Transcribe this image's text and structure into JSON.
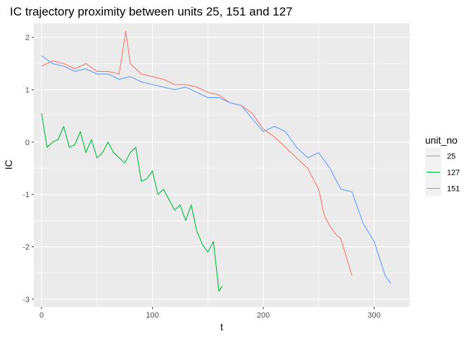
{
  "chart_data": {
    "type": "line",
    "title": "IC trajectory proximity between units 25, 151 and 127",
    "xlabel": "t",
    "ylabel": "IC",
    "xlim": [
      -7,
      332
    ],
    "ylim": [
      -3.15,
      2.27
    ],
    "x_ticks": [
      0,
      100,
      200,
      300
    ],
    "y_ticks": [
      2,
      1,
      0,
      -1,
      -2,
      -3
    ],
    "x_tick_labels": [
      "0",
      "100",
      "200",
      "300"
    ],
    "y_tick_labels": [
      "2",
      "1",
      "0",
      "-1",
      "-2",
      "-3"
    ],
    "grid": true,
    "legend": {
      "title": "unit_no",
      "position": "right"
    },
    "series": [
      {
        "name": "25",
        "color": "#F8766D",
        "x": [
          0,
          10,
          20,
          30,
          40,
          50,
          60,
          70,
          76,
          80,
          90,
          100,
          110,
          120,
          130,
          140,
          150,
          160,
          170,
          180,
          190,
          200,
          210,
          220,
          230,
          240,
          250,
          255,
          260,
          265,
          270,
          275,
          280
        ],
        "y": [
          1.45,
          1.55,
          1.5,
          1.4,
          1.5,
          1.35,
          1.35,
          1.3,
          2.12,
          1.5,
          1.3,
          1.25,
          1.2,
          1.1,
          1.1,
          1.05,
          0.95,
          0.9,
          0.75,
          0.7,
          0.55,
          0.25,
          0.1,
          -0.1,
          -0.3,
          -0.5,
          -0.9,
          -1.4,
          -1.6,
          -1.75,
          -1.85,
          -2.2,
          -2.55
        ]
      },
      {
        "name": "127",
        "color": "#00BA38",
        "x": [
          0,
          5,
          10,
          15,
          20,
          25,
          30,
          35,
          40,
          45,
          50,
          55,
          60,
          65,
          70,
          75,
          80,
          85,
          90,
          95,
          100,
          105,
          110,
          115,
          120,
          125,
          130,
          135,
          140,
          145,
          150,
          155,
          160,
          163
        ],
        "y": [
          0.55,
          -0.1,
          0.0,
          0.05,
          0.3,
          -0.1,
          -0.05,
          0.2,
          -0.2,
          0.05,
          -0.3,
          -0.2,
          0.0,
          -0.2,
          -0.3,
          -0.4,
          -0.2,
          -0.1,
          -0.75,
          -0.7,
          -0.55,
          -1.0,
          -0.9,
          -1.1,
          -1.3,
          -1.2,
          -1.5,
          -1.2,
          -1.7,
          -1.95,
          -2.1,
          -1.9,
          -2.85,
          -2.75
        ]
      },
      {
        "name": "151",
        "color": "#619CFF",
        "x": [
          0,
          10,
          20,
          30,
          40,
          50,
          60,
          70,
          80,
          90,
          100,
          110,
          120,
          130,
          140,
          150,
          160,
          170,
          180,
          190,
          200,
          210,
          220,
          230,
          240,
          250,
          260,
          270,
          280,
          290,
          300,
          310,
          315
        ],
        "y": [
          1.65,
          1.5,
          1.45,
          1.35,
          1.4,
          1.3,
          1.3,
          1.2,
          1.25,
          1.15,
          1.1,
          1.05,
          1.0,
          1.05,
          0.95,
          0.85,
          0.85,
          0.75,
          0.7,
          0.45,
          0.2,
          0.3,
          0.2,
          -0.1,
          -0.3,
          -0.2,
          -0.5,
          -0.9,
          -0.95,
          -1.55,
          -1.9,
          -2.55,
          -2.7
        ]
      }
    ]
  }
}
